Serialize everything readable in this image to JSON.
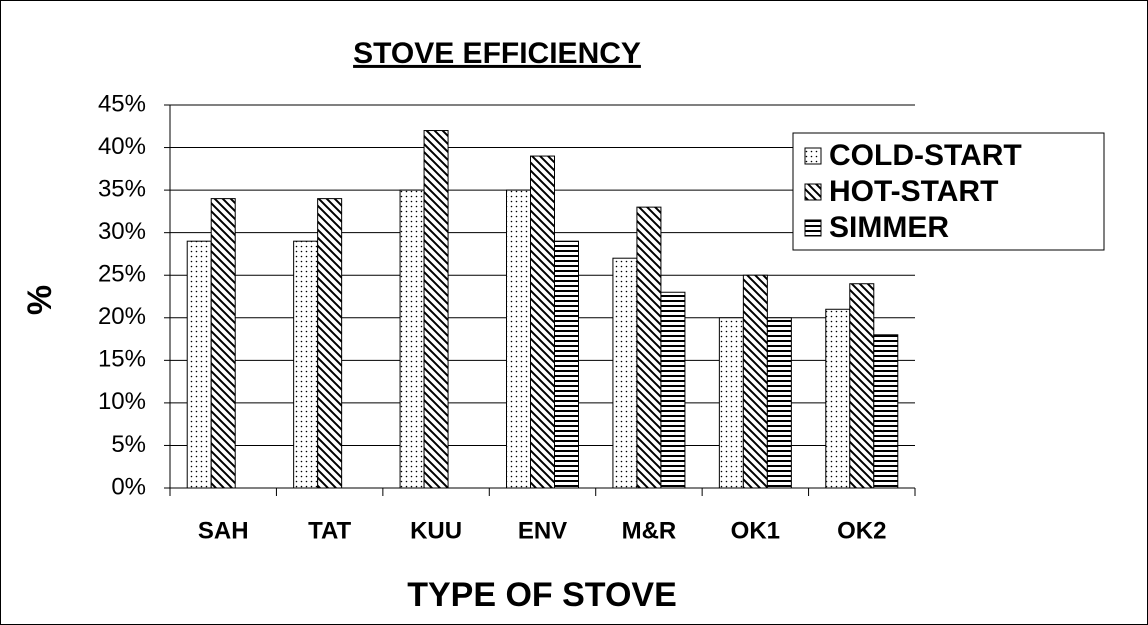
{
  "chart_data": {
    "type": "bar",
    "title": "STOVE EFFICIENCY",
    "x_label": "TYPE OF STOVE",
    "y_label": "%",
    "categories": [
      "SAH",
      "TAT",
      "KUU",
      "ENV",
      "M&R",
      "OK1",
      "OK2"
    ],
    "series": [
      {
        "name": "COLD-START",
        "color": "#000000",
        "pattern": "dots",
        "values": [
          29,
          29,
          35,
          35,
          27,
          20,
          21
        ]
      },
      {
        "name": "HOT-START",
        "color": "#000000",
        "pattern": "diagonal",
        "values": [
          34,
          34,
          42,
          39,
          33,
          25,
          24
        ]
      },
      {
        "name": "SIMMER",
        "color": "#000000",
        "pattern": "horizontal",
        "values": [
          null,
          null,
          null,
          29,
          23,
          20,
          18
        ]
      }
    ],
    "ylim": [
      0,
      45
    ],
    "yticks": [
      {
        "value": 0,
        "label": "0%"
      },
      {
        "value": 5,
        "label": "5%"
      },
      {
        "value": 10,
        "label": "10%"
      },
      {
        "value": 15,
        "label": "15%"
      },
      {
        "value": 20,
        "label": "20%"
      },
      {
        "value": 25,
        "label": "25%"
      },
      {
        "value": 30,
        "label": "30%"
      },
      {
        "value": 35,
        "label": "35%"
      },
      {
        "value": 40,
        "label": "40%"
      },
      {
        "value": 45,
        "label": "45%"
      }
    ],
    "grid": true,
    "legend": "top-right"
  }
}
